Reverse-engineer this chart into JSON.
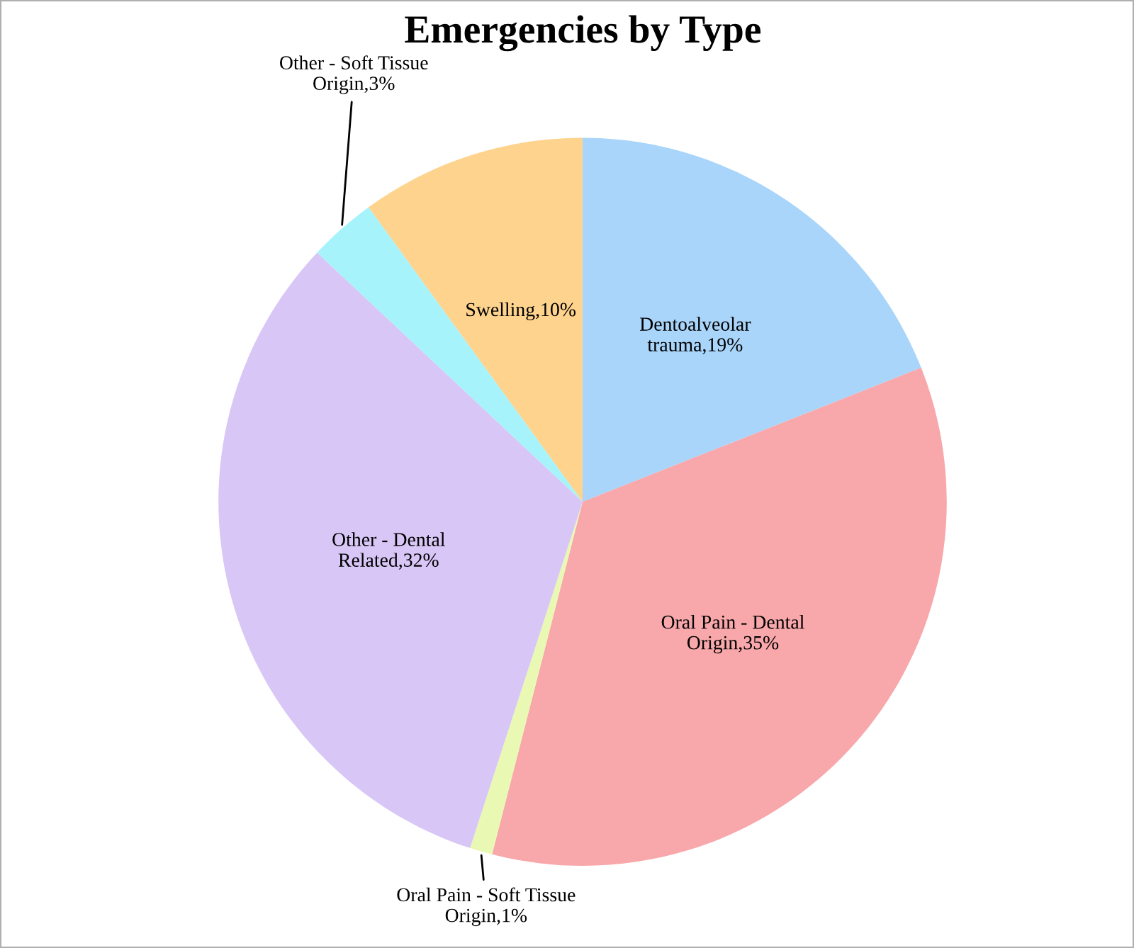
{
  "chart_data": {
    "type": "pie",
    "title": "Emergencies by Type",
    "categories": [
      "Dentoalveolar trauma",
      "Oral Pain - Dental Origin",
      "Oral Pain - Soft Tissue Origin",
      "Other - Dental Related",
      "Other - Soft Tissue Origin",
      "Swelling"
    ],
    "values": [
      19,
      35,
      1,
      32,
      3,
      10
    ],
    "value_labels": [
      "19%",
      "35%",
      "1%",
      "32%",
      "3%",
      "10%"
    ],
    "colors": [
      "#a9d5fa",
      "#f8a7aa",
      "#e9f8b2",
      "#d8c6f6",
      "#a6f3fb",
      "#fdd38e"
    ]
  }
}
